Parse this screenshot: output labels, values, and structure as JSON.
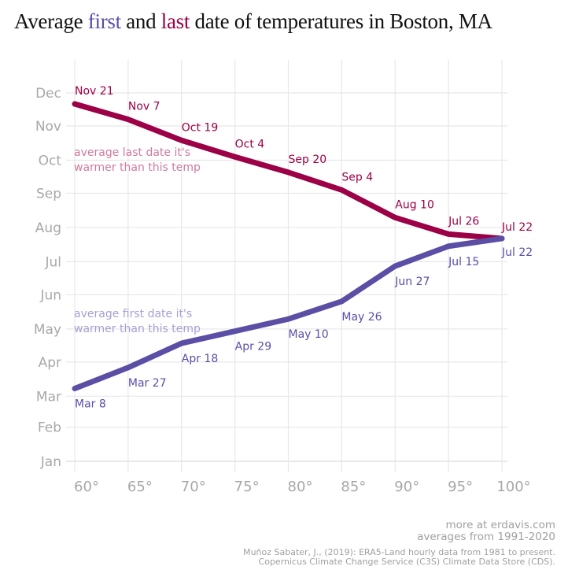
{
  "title": {
    "prefix": "Average ",
    "first": "first",
    "middle": " and ",
    "last": "last",
    "suffix": " date of temperatures in Boston, MA"
  },
  "colors": {
    "first": "#5b4ea5",
    "last": "#9c0046",
    "first_annotation": "#a79fd2",
    "last_annotation": "#d07a9f",
    "grid": "#e8e8e8",
    "axis_text": "#a8a8a8"
  },
  "chart_data": {
    "type": "line",
    "title": "Average first and last date of temperatures in Boston, MA",
    "xlabel": "",
    "ylabel": "",
    "x": [
      60,
      65,
      70,
      75,
      80,
      85,
      90,
      95,
      100
    ],
    "x_tick_labels": [
      "60°",
      "65°",
      "70°",
      "75°",
      "80°",
      "85°",
      "90°",
      "95°",
      "100°"
    ],
    "xlim": [
      60,
      100
    ],
    "y_tick_labels": [
      "Jan",
      "Feb",
      "Mar",
      "Apr",
      "May",
      "Jun",
      "Jul",
      "Aug",
      "Sep",
      "Oct",
      "Nov",
      "Dec"
    ],
    "y_tick_day_of_year": [
      0,
      31,
      59,
      90,
      120,
      151,
      181,
      212,
      243,
      273,
      304,
      334
    ],
    "grid": true,
    "series": [
      {
        "name": "last",
        "annotation": [
          "average last date it's",
          "warmer than this temp"
        ],
        "labels": [
          "Nov 21",
          "Nov 7",
          "Oct 19",
          "Oct 4",
          "Sep 20",
          "Sep 4",
          "Aug 10",
          "Jul 26",
          "Jul 22"
        ],
        "day_of_year": [
          324,
          310,
          291,
          276,
          262,
          246,
          221,
          206,
          202
        ]
      },
      {
        "name": "first",
        "annotation": [
          "average first date it's",
          "warmer than this temp"
        ],
        "labels": [
          "Mar 8",
          "Mar 27",
          "Apr 18",
          "Apr 29",
          "May 10",
          "May 26",
          "Jun 27",
          "Jul 15",
          "Jul 22"
        ],
        "day_of_year": [
          66,
          85,
          107,
          118,
          129,
          145,
          177,
          195,
          202
        ]
      }
    ]
  },
  "footer": {
    "line1": "more at erdavis.com",
    "line2": "averages from 1991-2020",
    "line3": "Muñoz Sabater, J., (2019): ERA5-Land hourly data from 1981 to present.",
    "line4": "Copernicus Climate Change Service (C3S) Climate Data Store (CDS)."
  }
}
